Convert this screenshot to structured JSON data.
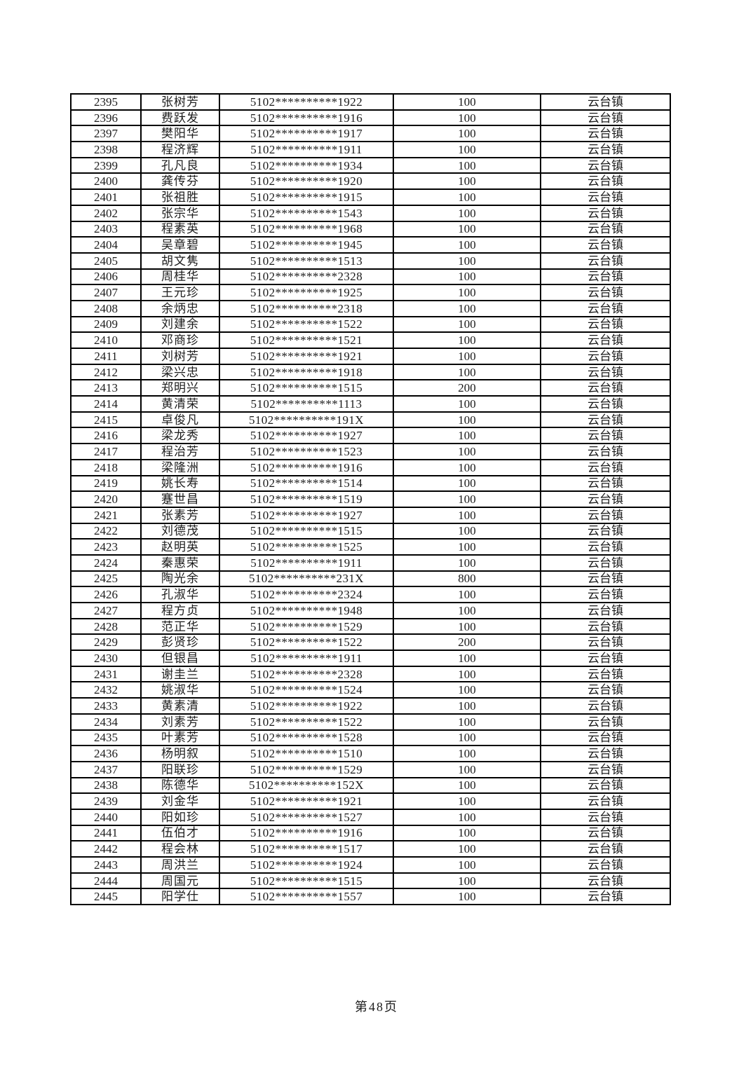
{
  "document": {
    "footer": {
      "page_label": "第48页"
    },
    "table": {
      "rows": [
        [
          "2395",
          "张树芳",
          "5102**********1922",
          "100",
          "云台镇"
        ],
        [
          "2396",
          "费跃发",
          "5102**********1916",
          "100",
          "云台镇"
        ],
        [
          "2397",
          "樊阳华",
          "5102**********1917",
          "100",
          "云台镇"
        ],
        [
          "2398",
          "程济辉",
          "5102**********1911",
          "100",
          "云台镇"
        ],
        [
          "2399",
          "孔凡良",
          "5102**********1934",
          "100",
          "云台镇"
        ],
        [
          "2400",
          "龚传芬",
          "5102**********1920",
          "100",
          "云台镇"
        ],
        [
          "2401",
          "张祖胜",
          "5102**********1915",
          "100",
          "云台镇"
        ],
        [
          "2402",
          "张宗华",
          "5102**********1543",
          "100",
          "云台镇"
        ],
        [
          "2403",
          "程素英",
          "5102**********1968",
          "100",
          "云台镇"
        ],
        [
          "2404",
          "吴章碧",
          "5102**********1945",
          "100",
          "云台镇"
        ],
        [
          "2405",
          "胡文隽",
          "5102**********1513",
          "100",
          "云台镇"
        ],
        [
          "2406",
          "周桂华",
          "5102**********2328",
          "100",
          "云台镇"
        ],
        [
          "2407",
          "王元珍",
          "5102**********1925",
          "100",
          "云台镇"
        ],
        [
          "2408",
          "余炳忠",
          "5102**********2318",
          "100",
          "云台镇"
        ],
        [
          "2409",
          "刘建余",
          "5102**********1522",
          "100",
          "云台镇"
        ],
        [
          "2410",
          "邓商珍",
          "5102**********1521",
          "100",
          "云台镇"
        ],
        [
          "2411",
          "刘树芳",
          "5102**********1921",
          "100",
          "云台镇"
        ],
        [
          "2412",
          "梁兴忠",
          "5102**********1918",
          "100",
          "云台镇"
        ],
        [
          "2413",
          "郑明兴",
          "5102**********1515",
          "200",
          "云台镇"
        ],
        [
          "2414",
          "黄清荣",
          "5102**********1113",
          "100",
          "云台镇"
        ],
        [
          "2415",
          "卓俊凡",
          "5102**********191X",
          "100",
          "云台镇"
        ],
        [
          "2416",
          "梁龙秀",
          "5102**********1927",
          "100",
          "云台镇"
        ],
        [
          "2417",
          "程治芳",
          "5102**********1523",
          "100",
          "云台镇"
        ],
        [
          "2418",
          "梁隆洲",
          "5102**********1916",
          "100",
          "云台镇"
        ],
        [
          "2419",
          "姚长寿",
          "5102**********1514",
          "100",
          "云台镇"
        ],
        [
          "2420",
          "蹇世昌",
          "5102**********1519",
          "100",
          "云台镇"
        ],
        [
          "2421",
          "张素芳",
          "5102**********1927",
          "100",
          "云台镇"
        ],
        [
          "2422",
          "刘德茂",
          "5102**********1515",
          "100",
          "云台镇"
        ],
        [
          "2423",
          "赵明英",
          "5102**********1525",
          "100",
          "云台镇"
        ],
        [
          "2424",
          "秦惠荣",
          "5102**********1911",
          "100",
          "云台镇"
        ],
        [
          "2425",
          "陶光余",
          "5102**********231X",
          "800",
          "云台镇"
        ],
        [
          "2426",
          "孔淑华",
          "5102**********2324",
          "100",
          "云台镇"
        ],
        [
          "2427",
          "程方贞",
          "5102**********1948",
          "100",
          "云台镇"
        ],
        [
          "2428",
          "范正华",
          "5102**********1529",
          "100",
          "云台镇"
        ],
        [
          "2429",
          "彭贤珍",
          "5102**********1522",
          "200",
          "云台镇"
        ],
        [
          "2430",
          "但银昌",
          "5102**********1911",
          "100",
          "云台镇"
        ],
        [
          "2431",
          "谢圭兰",
          "5102**********2328",
          "100",
          "云台镇"
        ],
        [
          "2432",
          "姚淑华",
          "5102**********1524",
          "100",
          "云台镇"
        ],
        [
          "2433",
          "黄素清",
          "5102**********1922",
          "100",
          "云台镇"
        ],
        [
          "2434",
          "刘素芳",
          "5102**********1522",
          "100",
          "云台镇"
        ],
        [
          "2435",
          "叶素芳",
          "5102**********1528",
          "100",
          "云台镇"
        ],
        [
          "2436",
          "杨明叙",
          "5102**********1510",
          "100",
          "云台镇"
        ],
        [
          "2437",
          "阳联珍",
          "5102**********1529",
          "100",
          "云台镇"
        ],
        [
          "2438",
          "陈德华",
          "5102**********152X",
          "100",
          "云台镇"
        ],
        [
          "2439",
          "刘金华",
          "5102**********1921",
          "100",
          "云台镇"
        ],
        [
          "2440",
          "阳如珍",
          "5102**********1527",
          "100",
          "云台镇"
        ],
        [
          "2441",
          "伍伯才",
          "5102**********1916",
          "100",
          "云台镇"
        ],
        [
          "2442",
          "程会林",
          "5102**********1517",
          "100",
          "云台镇"
        ],
        [
          "2443",
          "周洪兰",
          "5102**********1924",
          "100",
          "云台镇"
        ],
        [
          "2444",
          "周国元",
          "5102**********1515",
          "100",
          "云台镇"
        ],
        [
          "2445",
          "阳学仕",
          "5102**********1557",
          "100",
          "云台镇"
        ]
      ]
    }
  }
}
